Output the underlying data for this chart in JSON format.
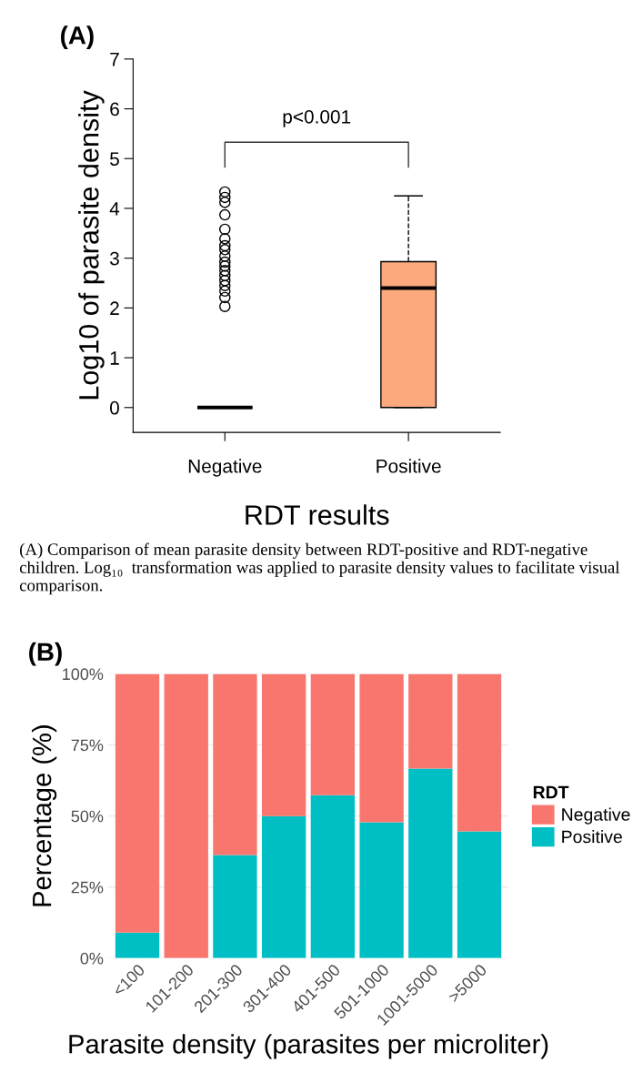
{
  "chart_data": [
    {
      "type": "box",
      "title": "(A)",
      "xlabel": "RDT results",
      "ylabel": "Log10 of parasite density",
      "categories": [
        "Negative",
        "Positive"
      ],
      "boxes": [
        {
          "low": 0,
          "q1": 0,
          "median": 0,
          "q3": 0,
          "high": 0,
          "outliers": [
            4.33,
            4.22,
            4.12,
            3.87,
            3.58,
            3.39,
            3.25,
            3.17,
            3.04,
            2.92,
            2.84,
            2.75,
            2.65,
            2.55,
            2.45,
            2.34,
            2.21,
            2.03
          ]
        },
        {
          "low": 0,
          "q1": 0,
          "median": 2.4,
          "q3": 2.93,
          "high": 4.25
        }
      ],
      "colors": [
        "#000000",
        "#fca97e"
      ],
      "marker": "circle",
      "ylim": [
        -0.5,
        7
      ],
      "yticks": [
        0,
        1,
        2,
        3,
        4,
        5,
        6,
        7
      ],
      "grid": false,
      "annotations": [
        "p<0.001",
        "(A) Comparison of mean parasite density between RDT-positive and RDT-negative children. Log₁₀  transformation was applied to parasite density values to facilitate visual comparison."
      ]
    },
    {
      "type": "bar",
      "stacked": true,
      "title": "(B)",
      "xlabel": "Parasite density (parasites per microliter)",
      "ylabel": "Percentage (%)",
      "legend_title": "RDT",
      "legend": "right",
      "grid": true,
      "categories": [
        "<100",
        "101-200",
        "201-300",
        "301-400",
        "401-500",
        "501-1000",
        "1001-5000",
        ">5000"
      ],
      "series": [
        {
          "name": "Positive",
          "color": "#00bfc4",
          "values": [
            9.0,
            0,
            36.3,
            50,
            57.3,
            47.8,
            66.7,
            44.6
          ]
        },
        {
          "name": "Negative",
          "color": "#f8766d",
          "values": [
            91.0,
            100,
            63.7,
            50,
            42.7,
            52.2,
            33.3,
            55.4
          ]
        }
      ],
      "ylim": [
        0,
        100
      ],
      "yticks": [
        {
          "value": 0,
          "label": "0%"
        },
        {
          "value": 25,
          "label": "25%"
        },
        {
          "value": 50,
          "label": "50%"
        },
        {
          "value": 75,
          "label": "75%"
        },
        {
          "value": 100,
          "label": "100%"
        }
      ]
    }
  ]
}
